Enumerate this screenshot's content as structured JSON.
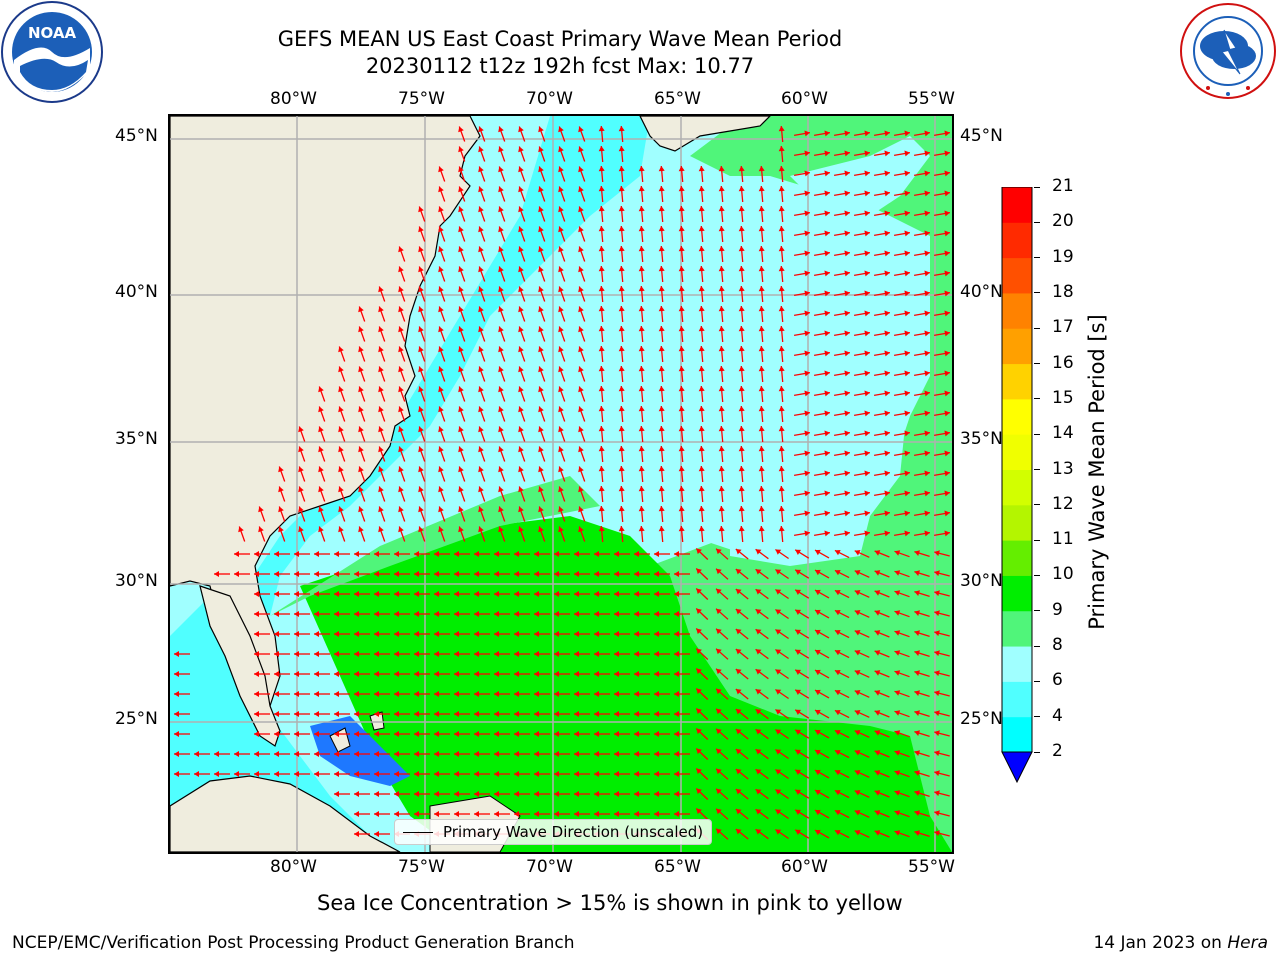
{
  "title": {
    "line1": "GEFS MEAN US East Coast Primary Wave Mean Period",
    "line2": "20230112 t12z 192h fcst   Max: 10.77"
  },
  "logos": {
    "noaa_text": "NOAA",
    "noaa_ring": "NATIONAL OCEANIC AND ATMOSPHERIC ADMINISTRATION · U.S. DEPARTMENT OF COMMERCE ·",
    "nws_ring": "NATIONAL WEATHER SERVICE"
  },
  "map": {
    "lon_labels": [
      "80°W",
      "75°W",
      "70°W",
      "65°W",
      "60°W",
      "55°W"
    ],
    "lat_labels": [
      "45°N",
      "40°N",
      "35°N",
      "30°N",
      "25°N"
    ],
    "lon_range": [
      -85,
      -54.5
    ],
    "lat_range": [
      20.5,
      46
    ],
    "legend": "Primary Wave Direction (unscaled)",
    "colors": {
      "land": "#efedde",
      "grid": "#b0b0b0",
      "arrow": "#ff0000",
      "coast": "#000000"
    }
  },
  "colorbar": {
    "label": "Primary Wave Mean Period [s]",
    "ticks": [
      "2",
      "4",
      "6",
      "8",
      "9",
      "10",
      "11",
      "12",
      "13",
      "14",
      "15",
      "16",
      "17",
      "18",
      "19",
      "20",
      "21"
    ],
    "under_color": "#0000ff",
    "colors": [
      "#1e78ff",
      "#00ffff",
      "#50ffff",
      "#a0ffff",
      "#50f57a",
      "#00ee00",
      "#64ee00",
      "#b4f500",
      "#d2ff00",
      "#f0ff00",
      "#ffff00",
      "#ffd200",
      "#ffa000",
      "#ff8200",
      "#ff5000",
      "#ff2a00",
      "#ff0000"
    ]
  },
  "footer": {
    "sea_ice_note": "Sea Ice Concentration > 15% is shown in pink to yellow",
    "left": "NCEP/EMC/Verification Post Processing Product Generation Branch",
    "right_date": "14 Jan 2023 on ",
    "right_machine": "Hera"
  }
}
